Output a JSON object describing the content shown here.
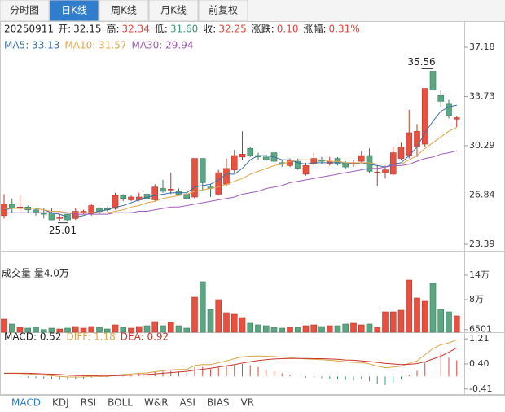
{
  "tabs": [
    "分时图",
    "日K线",
    "周K线",
    "月K线",
    "前复权"
  ],
  "active_tab": 1,
  "info": {
    "date": "20250911",
    "fields": [
      {
        "label": "开:",
        "value": "32.15",
        "color": "#222222"
      },
      {
        "label": "高:",
        "value": "32.34",
        "color": "#e0463a"
      },
      {
        "label": "低:",
        "value": "31.60",
        "color": "#3f9a72"
      },
      {
        "label": "收:",
        "value": "32.25",
        "color": "#e0463a"
      },
      {
        "label": "涨跌:",
        "value": "0.10",
        "color": "#e0463a"
      },
      {
        "label": "涨幅:",
        "value": "0.31%",
        "color": "#e0463a"
      }
    ]
  },
  "indicator_tabs": [
    "MACD",
    "KDJ",
    "RSI",
    "BOLL",
    "W&R",
    "ASI",
    "BIAS",
    "VR"
  ],
  "active_indicator": 0,
  "chart_data": [
    {
      "type": "candlestick",
      "up_color": "#e8503f",
      "down_color": "#5ba784",
      "ylim": [
        22.94,
        37.92
      ],
      "yticks": [
        37.18,
        33.73,
        30.29,
        26.84,
        23.39
      ],
      "open": [
        25.4,
        26.2,
        25.9,
        26.0,
        25.8,
        25.6,
        25.6,
        25.2,
        25.5,
        25.2,
        25.6,
        25.5,
        25.9,
        25.9,
        25.9,
        26.8,
        26.5,
        26.5,
        26.9,
        26.5,
        27.3,
        27.2,
        27.1,
        26.9,
        26.7,
        29.4,
        27.4,
        26.9,
        27.6,
        28.6,
        29.5,
        30.1,
        29.6,
        29.5,
        29.8,
        29.1,
        28.9,
        29.2,
        28.3,
        29.0,
        29.3,
        29.0,
        29.4,
        29.1,
        29.0,
        29.2,
        29.6,
        28.4,
        28.4,
        28.3,
        29.4,
        29.6,
        30.2,
        30.4,
        35.5,
        33.8,
        33.2,
        32.15
      ],
      "high": [
        26.9,
        26.6,
        26.8,
        26.1,
        25.9,
        25.9,
        25.9,
        25.5,
        25.6,
        25.9,
        25.8,
        26.2,
        26.0,
        26.0,
        27.0,
        26.9,
        26.8,
        27.0,
        27.1,
        27.6,
        27.9,
        28.4,
        27.3,
        27.0,
        29.4,
        29.4,
        27.6,
        28.6,
        29.4,
        30.0,
        31.3,
        30.2,
        29.8,
        29.7,
        29.9,
        29.3,
        29.4,
        29.4,
        29.1,
        29.8,
        29.5,
        29.5,
        29.5,
        29.2,
        29.3,
        29.9,
        30.1,
        28.9,
        28.9,
        30.2,
        30.5,
        32.8,
        31.8,
        34.3,
        35.56,
        34.2,
        33.5,
        32.34
      ],
      "low": [
        25.2,
        25.6,
        25.7,
        25.6,
        25.4,
        25.2,
        25.1,
        25.05,
        25.01,
        25.1,
        25.5,
        25.4,
        25.5,
        25.7,
        25.8,
        26.4,
        26.4,
        26.4,
        26.5,
        26.4,
        27.0,
        26.9,
        26.8,
        26.5,
        26.6,
        27.1,
        26.7,
        26.8,
        27.5,
        28.4,
        29.3,
        29.5,
        29.3,
        29.2,
        29.1,
        28.8,
        28.8,
        28.6,
        28.2,
        28.9,
        29.0,
        28.9,
        28.9,
        28.7,
        28.8,
        29.1,
        28.4,
        27.5,
        28.0,
        28.2,
        29.3,
        29.4,
        29.5,
        30.2,
        33.4,
        33.0,
        32.2,
        31.6
      ],
      "close": [
        26.2,
        25.9,
        26.0,
        25.8,
        25.6,
        25.5,
        25.1,
        25.3,
        25.1,
        25.7,
        25.7,
        26.1,
        25.7,
        25.8,
        26.8,
        26.6,
        26.7,
        26.7,
        26.6,
        27.4,
        27.1,
        27.25,
        26.9,
        26.6,
        29.4,
        27.7,
        27.3,
        28.4,
        28.7,
        29.6,
        29.7,
        29.6,
        29.5,
        29.3,
        29.2,
        29.0,
        29.3,
        28.7,
        28.9,
        29.4,
        29.2,
        29.2,
        29.0,
        28.8,
        29.1,
        29.6,
        28.5,
        28.45,
        28.6,
        29.8,
        30.2,
        31.2,
        31.3,
        34.3,
        34.2,
        33.4,
        32.4,
        32.25
      ],
      "series": [
        {
          "name": "MA5",
          "label": "MA5: 33.13",
          "color": "#3a6fa6",
          "values": [
            25.8,
            25.9,
            25.9,
            25.9,
            25.9,
            25.8,
            25.6,
            25.5,
            25.3,
            25.3,
            25.4,
            25.6,
            25.7,
            25.8,
            26.0,
            26.1,
            26.3,
            26.5,
            26.7,
            26.8,
            26.9,
            27.0,
            27.0,
            27.0,
            27.4,
            27.5,
            27.6,
            27.9,
            28.3,
            28.3,
            28.7,
            29.3,
            29.6,
            29.6,
            29.5,
            29.3,
            29.3,
            29.1,
            29.0,
            29.1,
            29.1,
            29.1,
            29.1,
            29.1,
            29.0,
            29.1,
            29.0,
            28.9,
            28.8,
            29.0,
            29.1,
            29.6,
            30.2,
            31.2,
            32.0,
            32.7,
            33.0,
            33.13
          ]
        },
        {
          "name": "MA10",
          "label": "MA10: 31.57",
          "color": "#e2a64a",
          "values": [
            25.9,
            25.9,
            25.9,
            25.9,
            25.9,
            25.8,
            25.7,
            25.7,
            25.6,
            25.6,
            25.6,
            25.6,
            25.6,
            25.6,
            25.7,
            25.8,
            26.0,
            26.1,
            26.3,
            26.4,
            26.6,
            26.7,
            26.8,
            26.9,
            27.1,
            27.2,
            27.3,
            27.4,
            27.6,
            27.8,
            28.0,
            28.3,
            28.5,
            28.7,
            28.9,
            29.0,
            29.2,
            29.3,
            29.3,
            29.3,
            29.3,
            29.2,
            29.2,
            29.1,
            29.1,
            29.1,
            29.1,
            29.0,
            29.0,
            29.0,
            29.0,
            29.3,
            29.6,
            30.1,
            30.5,
            30.9,
            31.3,
            31.57
          ]
        },
        {
          "name": "MA30",
          "label": "MA30: 29.94",
          "color": "#a05cb8",
          "values": [
            25.6,
            25.6,
            25.6,
            25.6,
            25.6,
            25.6,
            25.6,
            25.6,
            25.6,
            25.5,
            25.5,
            25.5,
            25.5,
            25.5,
            25.6,
            25.6,
            25.6,
            25.7,
            25.7,
            25.8,
            25.9,
            26.0,
            26.0,
            26.1,
            26.2,
            26.3,
            26.4,
            26.5,
            26.6,
            26.7,
            26.9,
            27.0,
            27.1,
            27.3,
            27.4,
            27.5,
            27.7,
            27.8,
            27.9,
            28.0,
            28.1,
            28.2,
            28.3,
            28.4,
            28.5,
            28.6,
            28.7,
            28.7,
            28.8,
            28.9,
            28.9,
            29.0,
            29.2,
            29.4,
            29.5,
            29.7,
            29.8,
            29.94
          ]
        }
      ]
    },
    {
      "type": "bar",
      "title": "成交量 量4.0万",
      "ylim": [
        0,
        156000
      ],
      "yticks": [
        {
          "value": 140000,
          "label": "14万"
        },
        {
          "value": 80000,
          "label": "8万"
        },
        6501
      ],
      "values": [
        32000,
        20000,
        12000,
        10000,
        12000,
        6501,
        10000,
        8000,
        10000,
        14000,
        10000,
        14000,
        12000,
        8000,
        18000,
        12000,
        10000,
        14000,
        16000,
        26000,
        16000,
        24000,
        16000,
        10000,
        86000,
        124000,
        56000,
        80000,
        48000,
        44000,
        36000,
        22000,
        18000,
        16000,
        12000,
        10000,
        12000,
        12000,
        16000,
        18000,
        14000,
        16000,
        16000,
        20000,
        22000,
        18000,
        20000,
        12000,
        50000,
        50000,
        54000,
        128000,
        84000,
        76000,
        120000,
        56000,
        50000,
        40000
      ]
    },
    {
      "type": "macd",
      "label": "MACD: 0.52",
      "up_color": "#e0463a",
      "down_color": "#3f9a72",
      "ylim": [
        -0.6,
        1.4
      ],
      "yticks": [
        1.21,
        {
          "value": 0.4,
          "label": "0.40"
        },
        -0.41
      ],
      "values": [
        0,
        0,
        -0.02,
        -0.04,
        -0.06,
        -0.08,
        -0.1,
        -0.12,
        -0.12,
        -0.1,
        -0.08,
        -0.04,
        -0.02,
        -0.02,
        0.04,
        0.06,
        0.08,
        0.1,
        0.1,
        0.14,
        0.16,
        0.18,
        0.16,
        0.12,
        0.3,
        0.3,
        0.24,
        0.28,
        0.32,
        0.38,
        0.4,
        0.36,
        0.3,
        0.22,
        0.16,
        0.1,
        0.06,
        0.0,
        -0.04,
        -0.04,
        -0.06,
        -0.08,
        -0.1,
        -0.12,
        -0.14,
        -0.1,
        -0.16,
        -0.24,
        -0.28,
        -0.2,
        -0.1,
        0.06,
        0.18,
        0.46,
        0.68,
        0.74,
        0.6,
        0.52
      ],
      "series": [
        {
          "name": "DIFF",
          "label": "DIFF: 1.18",
          "color": "#d9a548",
          "values": [
            0.1,
            0.1,
            0.09,
            0.08,
            0.06,
            0.04,
            0.02,
            0.0,
            -0.02,
            -0.02,
            -0.02,
            0.0,
            0.0,
            0.0,
            0.04,
            0.06,
            0.08,
            0.1,
            0.11,
            0.15,
            0.18,
            0.21,
            0.22,
            0.22,
            0.35,
            0.38,
            0.38,
            0.44,
            0.5,
            0.57,
            0.63,
            0.65,
            0.66,
            0.65,
            0.64,
            0.62,
            0.61,
            0.58,
            0.56,
            0.55,
            0.54,
            0.52,
            0.5,
            0.47,
            0.45,
            0.45,
            0.4,
            0.33,
            0.28,
            0.3,
            0.33,
            0.42,
            0.5,
            0.7,
            0.9,
            1.02,
            1.08,
            1.18
          ]
        },
        {
          "name": "DEA",
          "label": "DEA: 0.92",
          "color": "#c8362c",
          "values": [
            0.1,
            0.1,
            0.1,
            0.1,
            0.09,
            0.08,
            0.07,
            0.06,
            0.04,
            0.03,
            0.02,
            0.02,
            0.01,
            0.01,
            0.02,
            0.03,
            0.04,
            0.05,
            0.06,
            0.08,
            0.1,
            0.12,
            0.14,
            0.16,
            0.2,
            0.23,
            0.26,
            0.3,
            0.34,
            0.38,
            0.43,
            0.47,
            0.51,
            0.54,
            0.56,
            0.57,
            0.58,
            0.58,
            0.58,
            0.57,
            0.57,
            0.56,
            0.55,
            0.53,
            0.52,
            0.5,
            0.48,
            0.45,
            0.42,
            0.4,
            0.38,
            0.39,
            0.41,
            0.47,
            0.56,
            0.65,
            0.78,
            0.92
          ]
        }
      ]
    }
  ]
}
